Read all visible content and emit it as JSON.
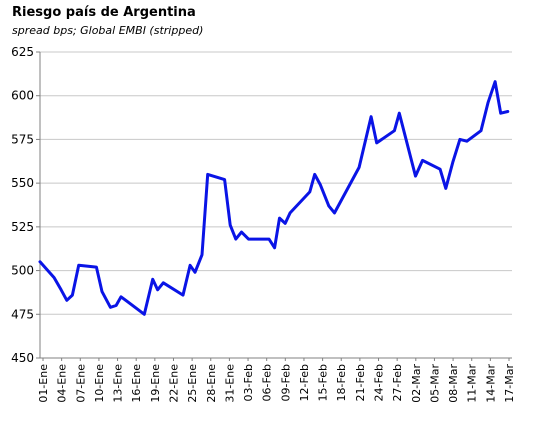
{
  "chart_data": {
    "type": "line",
    "title": "Riesgo país de Argentina",
    "subtitle": "spread bps; Global EMBI (stripped)",
    "xlabel": "",
    "ylabel": "",
    "ylim": [
      450,
      625
    ],
    "yticks": [
      450,
      475,
      500,
      525,
      550,
      575,
      600,
      625
    ],
    "grid": true,
    "legend": "none",
    "colors": {
      "line": "#0a14e6",
      "grid": "#c8c8c8",
      "axis": "#808080"
    },
    "x_tick_labels": [
      "01-Ene",
      "04-Ene",
      "07-Ene",
      "10-Ene",
      "13-Ene",
      "16-Ene",
      "19-Ene",
      "22-Ene",
      "25-Ene",
      "28-Ene",
      "31-Ene",
      "03-Feb",
      "06-Feb",
      "09-Feb",
      "12-Feb",
      "15-Feb",
      "18-Feb",
      "21-Feb",
      "24-Feb",
      "27-Feb",
      "02-Mar",
      "05-Mar",
      "08-Mar",
      "11-Mar",
      "14-Mar",
      "17-Mar"
    ],
    "series": [
      {
        "values": [
          {
            "x": 0,
            "y": 505
          },
          {
            "x": 2,
            "y": 496
          },
          {
            "x": 3,
            "y": 489
          },
          {
            "x": 3.8,
            "y": 483
          },
          {
            "x": 4.6,
            "y": 486
          },
          {
            "x": 5.5,
            "y": 503
          },
          {
            "x": 8,
            "y": 502
          },
          {
            "x": 8.8,
            "y": 488
          },
          {
            "x": 10,
            "y": 479
          },
          {
            "x": 10.8,
            "y": 480
          },
          {
            "x": 11.5,
            "y": 485
          },
          {
            "x": 14.8,
            "y": 475
          },
          {
            "x": 16,
            "y": 495
          },
          {
            "x": 16.7,
            "y": 489
          },
          {
            "x": 17.5,
            "y": 493
          },
          {
            "x": 20.3,
            "y": 486
          },
          {
            "x": 21.3,
            "y": 503
          },
          {
            "x": 22,
            "y": 499
          },
          {
            "x": 23,
            "y": 509
          },
          {
            "x": 23.8,
            "y": 555
          },
          {
            "x": 26.2,
            "y": 552
          },
          {
            "x": 27,
            "y": 526
          },
          {
            "x": 27.8,
            "y": 518
          },
          {
            "x": 28.6,
            "y": 522
          },
          {
            "x": 29.6,
            "y": 518
          },
          {
            "x": 32.5,
            "y": 518
          },
          {
            "x": 33.3,
            "y": 513
          },
          {
            "x": 34,
            "y": 530
          },
          {
            "x": 34.8,
            "y": 527
          },
          {
            "x": 35.5,
            "y": 533
          },
          {
            "x": 38.3,
            "y": 545
          },
          {
            "x": 39,
            "y": 555
          },
          {
            "x": 39.8,
            "y": 549
          },
          {
            "x": 41,
            "y": 537
          },
          {
            "x": 41.8,
            "y": 533
          },
          {
            "x": 45.3,
            "y": 559
          },
          {
            "x": 47,
            "y": 588
          },
          {
            "x": 47.8,
            "y": 573
          },
          {
            "x": 50.3,
            "y": 580
          },
          {
            "x": 51,
            "y": 590
          },
          {
            "x": 53.3,
            "y": 554
          },
          {
            "x": 54.3,
            "y": 563
          },
          {
            "x": 56.8,
            "y": 558
          },
          {
            "x": 57.6,
            "y": 547
          },
          {
            "x": 58.6,
            "y": 562
          },
          {
            "x": 59.6,
            "y": 575
          },
          {
            "x": 60.6,
            "y": 574
          },
          {
            "x": 62.6,
            "y": 580
          },
          {
            "x": 63.6,
            "y": 596
          },
          {
            "x": 64.6,
            "y": 608
          },
          {
            "x": 65.4,
            "y": 590
          },
          {
            "x": 66.4,
            "y": 591
          }
        ]
      }
    ]
  }
}
